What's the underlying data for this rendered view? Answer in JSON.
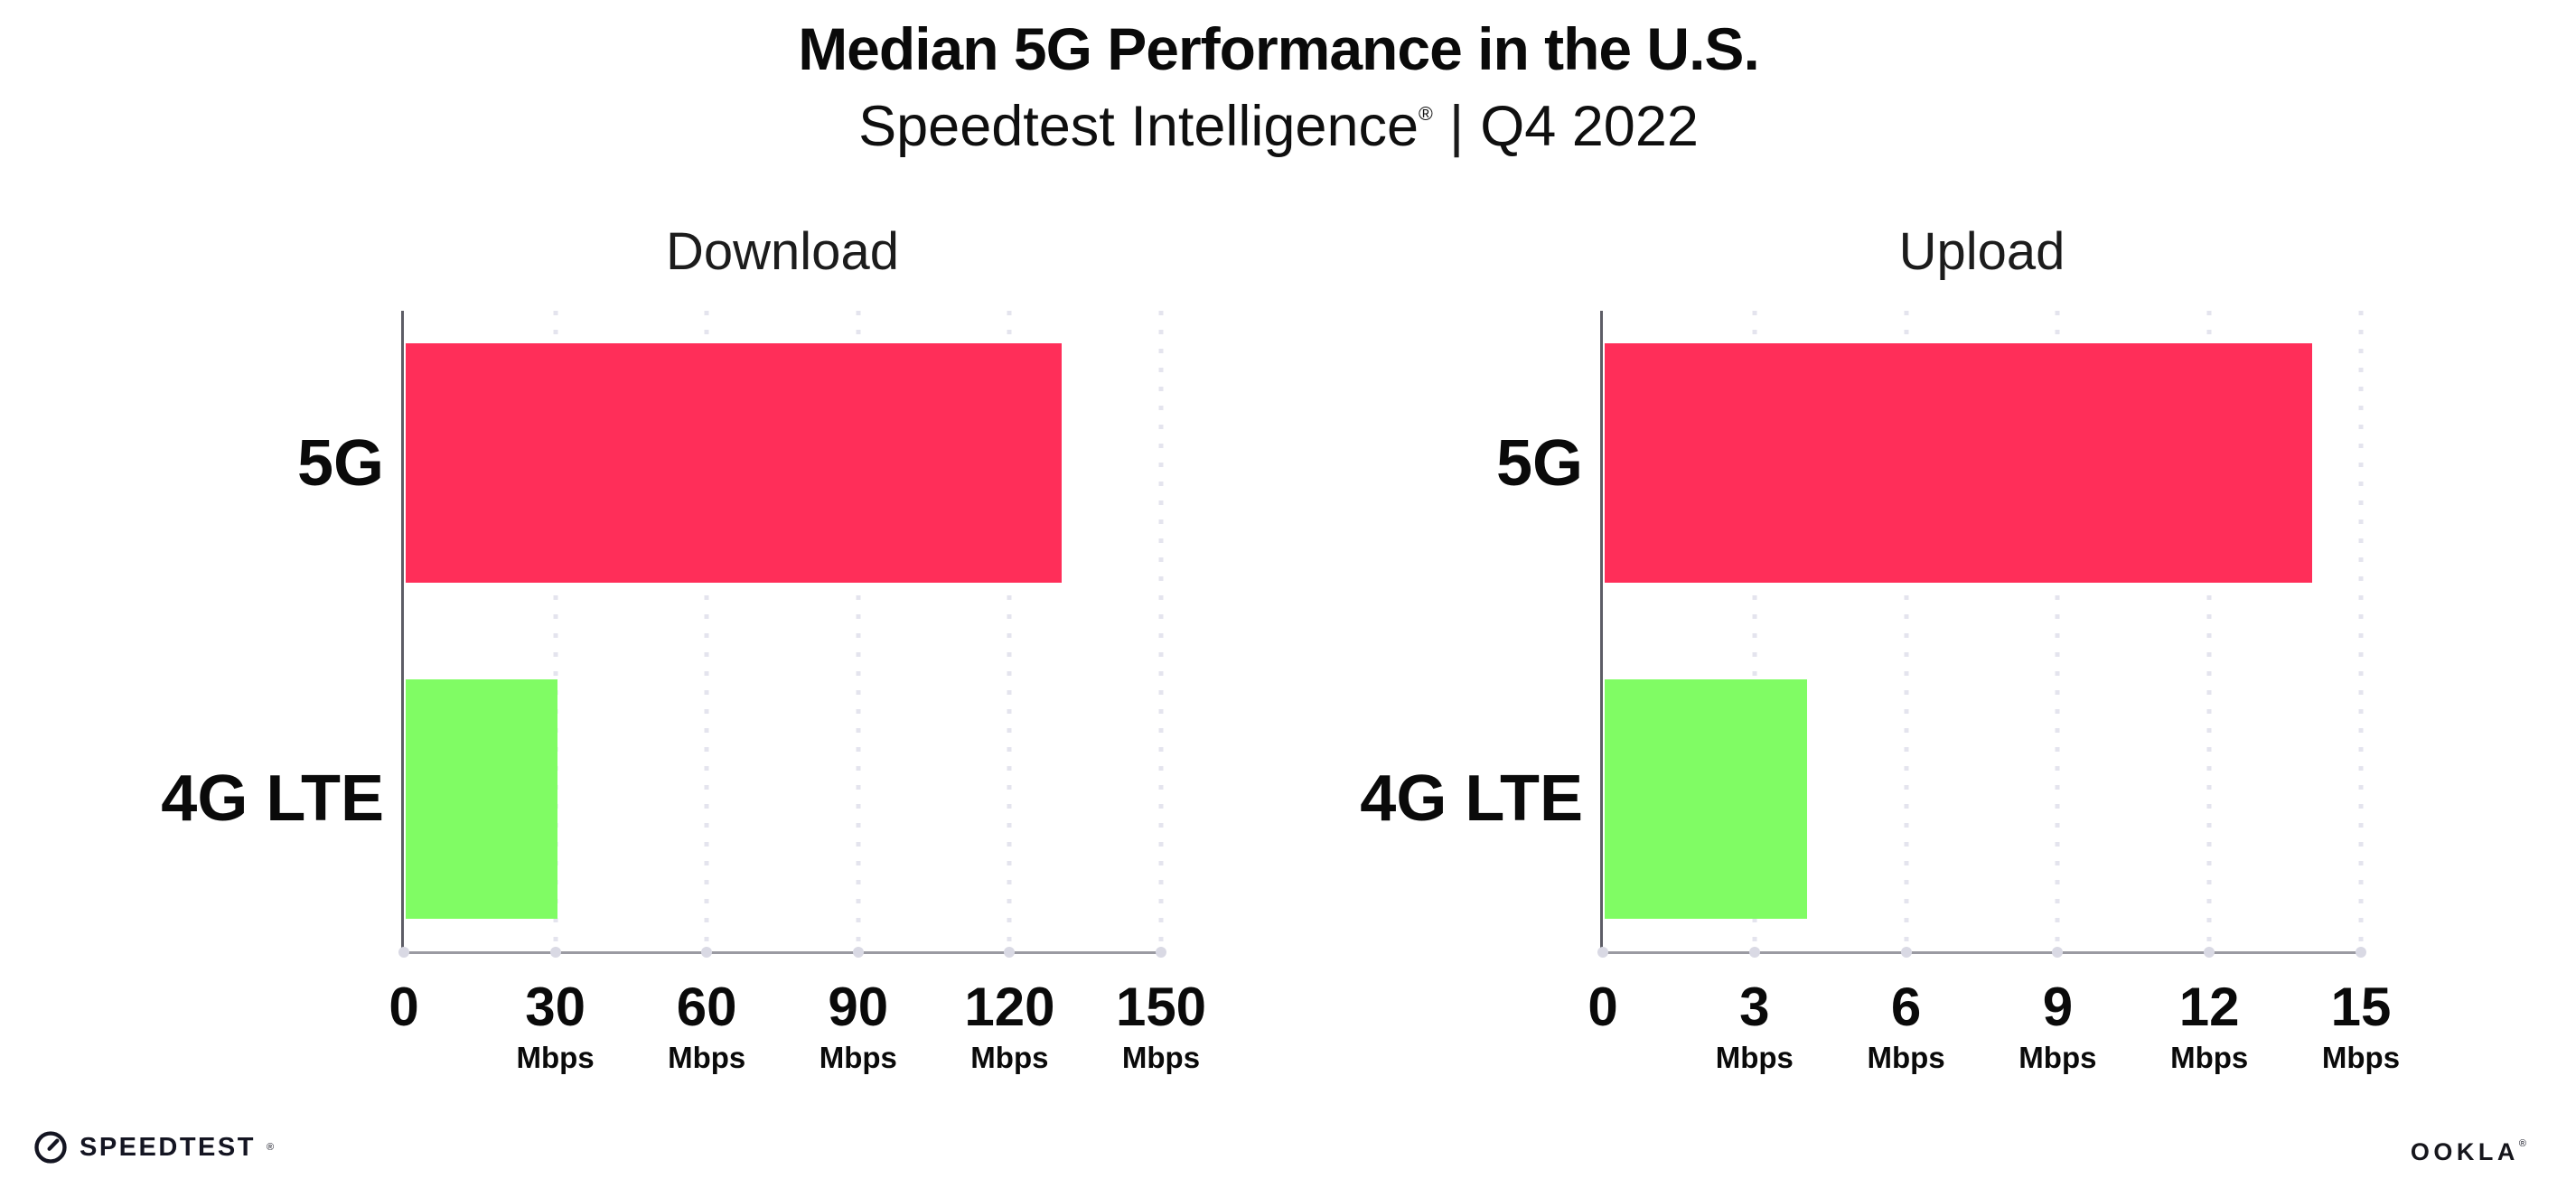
{
  "header": {
    "title": "Median 5G Performance in the U.S.",
    "subtitle_brand": "Speedtest Intelligence",
    "subtitle_reg": "®",
    "subtitle_sep": "|",
    "subtitle_period": "Q4 2022"
  },
  "colors": {
    "bar_5g": "#FF2E59",
    "bar_4g_lte": "#80FC64",
    "axis_y": "#5d5d66",
    "axis_x": "#9a9aa2",
    "grid_dot": "#e4e4ee",
    "tick_dot": "#d9d9e4"
  },
  "chart_data": [
    {
      "type": "bar",
      "orientation": "horizontal",
      "title": "Download",
      "categories": [
        "5G",
        "4G LTE"
      ],
      "values": [
        130,
        30
      ],
      "unit": "Mbps",
      "xlim": [
        0,
        150
      ],
      "xticks": [
        0,
        30,
        60,
        90,
        120,
        150
      ],
      "bar_colors": [
        "#FF2E59",
        "#80FC64"
      ],
      "grid": "dotted-vertical",
      "legend": "none"
    },
    {
      "type": "bar",
      "orientation": "horizontal",
      "title": "Upload",
      "categories": [
        "5G",
        "4G LTE"
      ],
      "values": [
        14,
        4
      ],
      "unit": "Mbps",
      "xlim": [
        0,
        15
      ],
      "xticks": [
        0,
        3,
        6,
        9,
        12,
        15
      ],
      "bar_colors": [
        "#FF2E59",
        "#80FC64"
      ],
      "grid": "dotted-vertical",
      "legend": "none"
    }
  ],
  "footer": {
    "speedtest": "SPEEDTEST",
    "speedtest_reg": "®",
    "ookla": "OOKLA",
    "ookla_reg": "®"
  }
}
